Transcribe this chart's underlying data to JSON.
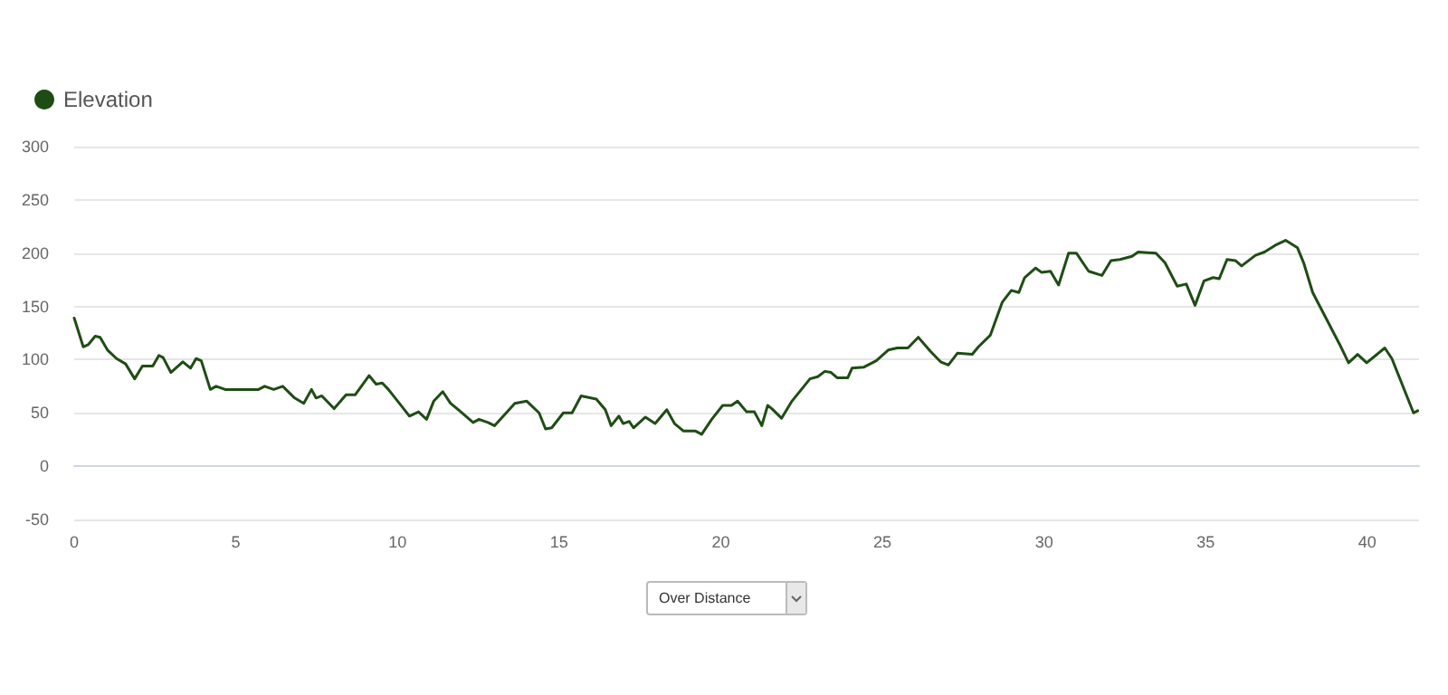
{
  "chart_data": {
    "type": "line",
    "legend": "top left",
    "grid": "y",
    "marker": "none",
    "line_style": "solid",
    "xlim": [
      0,
      41.6
    ],
    "xticks": [
      0,
      5,
      10,
      15,
      20,
      25,
      30,
      35,
      40
    ],
    "ylim": [
      -50,
      300
    ],
    "yticks": [
      -50,
      0,
      50,
      100,
      150,
      200,
      250,
      300
    ],
    "annotations": [
      "Over Distance"
    ],
    "series": [
      {
        "name": "Elevation",
        "color": "#1e4d14",
        "x": [
          0,
          0.28,
          0.43,
          0.65,
          0.8,
          1.03,
          1.31,
          1.59,
          1.87,
          2.11,
          2.43,
          2.62,
          2.75,
          2.99,
          3.36,
          3.6,
          3.77,
          3.93,
          4.21,
          4.39,
          4.67,
          5.7,
          5.89,
          6.17,
          6.45,
          6.82,
          7.1,
          7.34,
          7.48,
          7.66,
          8.04,
          8.41,
          8.69,
          9.12,
          9.34,
          9.53,
          9.72,
          10.19,
          10.37,
          10.65,
          10.9,
          11.12,
          11.4,
          11.64,
          11.96,
          12.34,
          12.52,
          12.8,
          13.0,
          13.3,
          13.63,
          14.0,
          14.38,
          14.58,
          14.77,
          15.13,
          15.4,
          15.68,
          16.15,
          16.43,
          16.61,
          16.85,
          16.98,
          17.17,
          17.3,
          17.67,
          17.97,
          18.33,
          18.57,
          18.85,
          19.22,
          19.41,
          19.72,
          20.06,
          20.33,
          20.52,
          20.8,
          21.04,
          21.27,
          21.45,
          21.58,
          21.88,
          22.2,
          22.76,
          23.0,
          23.22,
          23.41,
          23.6,
          23.93,
          24.06,
          24.43,
          24.81,
          25.18,
          25.46,
          25.79,
          26.11,
          26.48,
          26.8,
          27.04,
          27.32,
          27.78,
          27.97,
          28.34,
          28.71,
          28.99,
          29.22,
          29.4,
          29.74,
          29.92,
          30.2,
          30.45,
          30.76,
          31.0,
          31.38,
          31.79,
          32.07,
          32.35,
          32.72,
          32.91,
          33.46,
          33.74,
          34.12,
          34.4,
          34.67,
          34.95,
          35.23,
          35.42,
          35.66,
          35.92,
          36.11,
          36.54,
          36.82,
          37.19,
          37.47,
          37.84,
          38.03,
          38.31,
          39.15,
          39.42,
          39.7,
          39.98,
          40.26,
          40.54,
          40.76,
          41.43,
          41.56
        ],
        "values": [
          139,
          112,
          114,
          122,
          121,
          109,
          101,
          96,
          82,
          94,
          94,
          104,
          102,
          88,
          98,
          92,
          101,
          99,
          72,
          75,
          72,
          72,
          75,
          72,
          75,
          64,
          59,
          72,
          64,
          66,
          54,
          67,
          67,
          85,
          77,
          78,
          72,
          54,
          47,
          51,
          44,
          61,
          70,
          59,
          51,
          41,
          44,
          41,
          38,
          48,
          59,
          61,
          50,
          35,
          36,
          50,
          50,
          66,
          63,
          53,
          38,
          47,
          40,
          42,
          36,
          46,
          40,
          53,
          40,
          33,
          33,
          30,
          44,
          57,
          57,
          61,
          51,
          51,
          38,
          57,
          54,
          45,
          61,
          82,
          84,
          89,
          88,
          83,
          83,
          92,
          93,
          99,
          109,
          111,
          111,
          121,
          108,
          98,
          95,
          106,
          105,
          112,
          123,
          154,
          165,
          163,
          177,
          186,
          182,
          183,
          170,
          200,
          200,
          183,
          179,
          193,
          194,
          197,
          201,
          200,
          191,
          169,
          171,
          151,
          174,
          177,
          176,
          194,
          193,
          188,
          198,
          201,
          208,
          212,
          205,
          191,
          163,
          114,
          97,
          105,
          97,
          104,
          111,
          101,
          50,
          52
        ]
      }
    ]
  }
}
